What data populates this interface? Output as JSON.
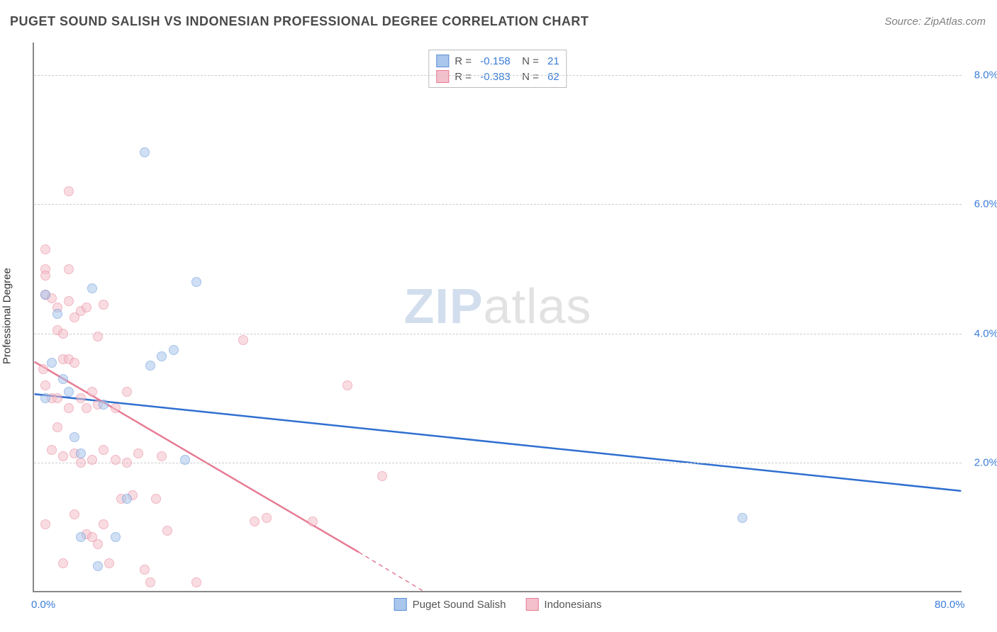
{
  "title": "PUGET SOUND SALISH VS INDONESIAN PROFESSIONAL DEGREE CORRELATION CHART",
  "source": "Source: ZipAtlas.com",
  "ylabel": "Professional Degree",
  "watermark": {
    "zip": "ZIP",
    "atlas": "atlas"
  },
  "chart": {
    "type": "scatter",
    "background_color": "#ffffff",
    "grid_color": "#cccccc",
    "axis_color": "#888888",
    "xlim": [
      0,
      80
    ],
    "ylim": [
      0,
      8.5
    ],
    "yticks": [
      2,
      4,
      6,
      8
    ],
    "ytick_labels": [
      "2.0%",
      "4.0%",
      "6.0%",
      "8.0%"
    ],
    "xticks": [
      0,
      80
    ],
    "xtick_labels": [
      "0.0%",
      "80.0%"
    ],
    "tick_label_color": "#3b7dd8",
    "point_radius": 7,
    "point_opacity": 0.55,
    "point_border_width": 1.5
  },
  "series": [
    {
      "name": "Puget Sound Salish",
      "fill": "#a9c6ec",
      "stroke": "#5b8fd6",
      "R": "-0.158",
      "N": "21",
      "trend": {
        "x1": 0,
        "y1": 3.05,
        "x2": 80,
        "y2": 1.55,
        "color": "#2f6fd0",
        "width": 2.5,
        "dash": null
      },
      "points": [
        [
          1.0,
          4.6
        ],
        [
          1.0,
          3.0
        ],
        [
          2.0,
          4.3
        ],
        [
          2.5,
          3.3
        ],
        [
          3.0,
          3.1
        ],
        [
          3.5,
          2.4
        ],
        [
          4.0,
          2.15
        ],
        [
          4.0,
          0.85
        ],
        [
          5.0,
          4.7
        ],
        [
          5.5,
          0.4
        ],
        [
          6.0,
          2.9
        ],
        [
          7.0,
          0.85
        ],
        [
          8.0,
          1.45
        ],
        [
          9.5,
          6.8
        ],
        [
          10.0,
          3.5
        ],
        [
          11.0,
          3.65
        ],
        [
          12.0,
          3.75
        ],
        [
          13.0,
          2.05
        ],
        [
          14.0,
          4.8
        ],
        [
          61.0,
          1.15
        ],
        [
          1.5,
          3.55
        ]
      ]
    },
    {
      "name": "Indonesians",
      "fill": "#f4c0cb",
      "stroke": "#e77b94",
      "R": "-0.383",
      "N": "62",
      "trend": {
        "x1": 0,
        "y1": 3.55,
        "x2": 28,
        "y2": 0.6,
        "color": "#e77b94",
        "width": 2.5,
        "dash": null,
        "ext_x2": 40,
        "ext_y2": -0.7,
        "ext_dash": "6 5"
      },
      "points": [
        [
          1.0,
          5.3
        ],
        [
          1.0,
          5.0
        ],
        [
          1.0,
          4.9
        ],
        [
          1.0,
          4.6
        ],
        [
          1.0,
          3.2
        ],
        [
          1.5,
          4.55
        ],
        [
          1.5,
          3.0
        ],
        [
          1.5,
          2.2
        ],
        [
          2.0,
          4.4
        ],
        [
          2.0,
          4.05
        ],
        [
          2.0,
          3.0
        ],
        [
          2.0,
          2.55
        ],
        [
          2.5,
          4.0
        ],
        [
          2.5,
          3.6
        ],
        [
          2.5,
          2.1
        ],
        [
          3.0,
          6.2
        ],
        [
          3.0,
          5.0
        ],
        [
          3.0,
          4.5
        ],
        [
          3.0,
          3.6
        ],
        [
          3.0,
          2.85
        ],
        [
          3.5,
          3.55
        ],
        [
          3.5,
          2.15
        ],
        [
          3.5,
          1.2
        ],
        [
          4.0,
          4.35
        ],
        [
          4.0,
          3.0
        ],
        [
          4.0,
          2.0
        ],
        [
          4.5,
          4.4
        ],
        [
          4.5,
          2.85
        ],
        [
          4.5,
          0.9
        ],
        [
          5.0,
          3.1
        ],
        [
          5.0,
          2.05
        ],
        [
          5.0,
          0.85
        ],
        [
          5.5,
          3.95
        ],
        [
          5.5,
          2.9
        ],
        [
          5.5,
          0.75
        ],
        [
          6.0,
          4.45
        ],
        [
          6.0,
          2.2
        ],
        [
          6.0,
          1.05
        ],
        [
          6.5,
          0.45
        ],
        [
          7.0,
          2.85
        ],
        [
          7.0,
          2.05
        ],
        [
          7.5,
          1.45
        ],
        [
          8.0,
          3.1
        ],
        [
          8.0,
          2.0
        ],
        [
          8.5,
          1.5
        ],
        [
          9.0,
          2.15
        ],
        [
          9.5,
          0.35
        ],
        [
          10.0,
          0.15
        ],
        [
          10.5,
          1.45
        ],
        [
          11.0,
          2.1
        ],
        [
          11.5,
          0.95
        ],
        [
          14.0,
          0.15
        ],
        [
          18.0,
          3.9
        ],
        [
          19.0,
          1.1
        ],
        [
          20.0,
          1.15
        ],
        [
          24.0,
          1.1
        ],
        [
          27.0,
          3.2
        ],
        [
          30.0,
          1.8
        ],
        [
          1.0,
          1.05
        ],
        [
          2.5,
          0.45
        ],
        [
          3.5,
          4.25
        ],
        [
          0.8,
          3.45
        ]
      ]
    }
  ],
  "legend_bottom": [
    "Puget Sound Salish",
    "Indonesians"
  ]
}
